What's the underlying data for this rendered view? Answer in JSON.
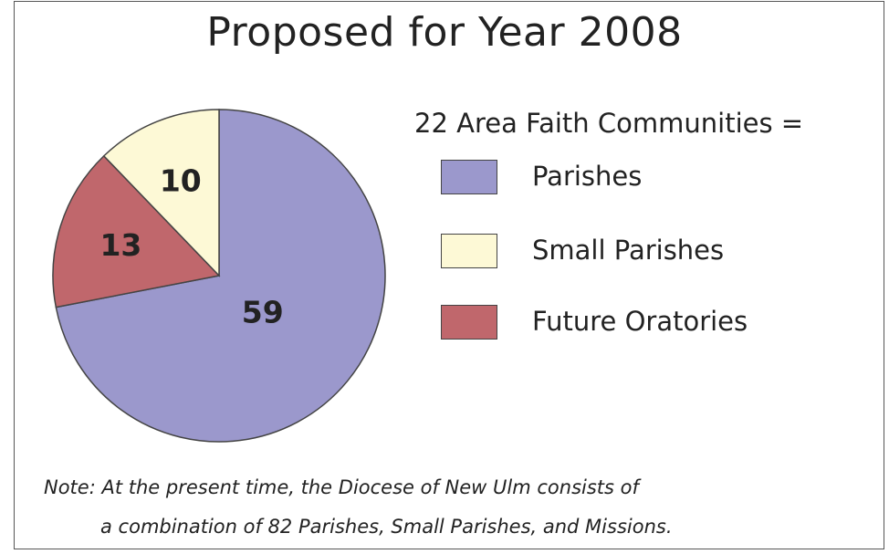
{
  "colors": {
    "parishes": "#9b98cc",
    "small_parishes": "#fdf9d6",
    "future_oratories": "#c0676c",
    "border": "#444444",
    "text": "#222222"
  },
  "title": "Proposed for Year 2008",
  "legend": {
    "heading": "22 Area Faith Communities =",
    "items": [
      "Parishes",
      "Small Parishes",
      "Future Oratories"
    ]
  },
  "note": {
    "line1": "Note: At the present time, the Diocese of New Ulm consists of",
    "line2": "a combination of 82 Parishes, Small Parishes, and Missions."
  },
  "chart_data": {
    "type": "pie",
    "title": "Proposed for Year 2008",
    "categories": [
      "Parishes",
      "Small Parishes",
      "Future Oratories"
    ],
    "values": [
      59,
      10,
      13
    ],
    "labels": [
      "59",
      "10",
      "13"
    ],
    "legend_position": "right"
  }
}
